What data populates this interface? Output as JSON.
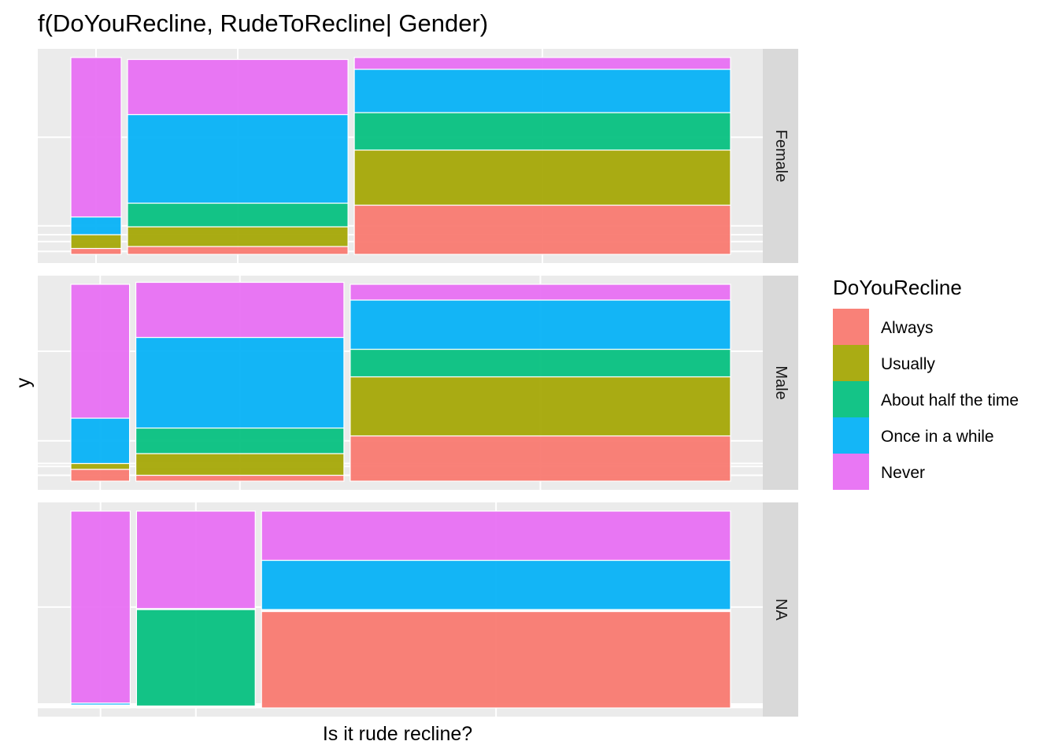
{
  "chart_data": {
    "type": "mosaic",
    "title": "f(DoYouRecline, RudeToRecline| Gender)",
    "xlabel": "Is it rude recline?",
    "ylabel": "y",
    "facet_labels": [
      "Female",
      "Male",
      "NA"
    ],
    "legend": {
      "title": "DoYouRecline",
      "placement": "right",
      "entries": [
        {
          "label": "Always",
          "color": "#F8766D"
        },
        {
          "label": "Usually",
          "color": "#A3A500"
        },
        {
          "label": "About half the time",
          "color": "#00BF7D"
        },
        {
          "label": "Once in a while",
          "color": "#00B0F6"
        },
        {
          "label": "Never",
          "color": "#E76BF3"
        }
      ]
    },
    "series_order": [
      "Always",
      "Usually",
      "About half the time",
      "Once in a while",
      "Never"
    ],
    "grid": true,
    "facets": [
      {
        "gender": "Female",
        "column_widths": [
          0.077,
          0.337,
          0.575
        ],
        "columns": [
          [
            0.03,
            0.07,
            0.0,
            0.09,
            0.81
          ],
          [
            0.04,
            0.1,
            0.12,
            0.45,
            0.28
          ],
          [
            0.25,
            0.28,
            0.19,
            0.22,
            0.06
          ]
        ]
      },
      {
        "gender": "Male",
        "column_widths": [
          0.09,
          0.319,
          0.583
        ],
        "columns": [
          [
            0.06,
            0.03,
            0.0,
            0.23,
            0.68
          ],
          [
            0.03,
            0.11,
            0.13,
            0.46,
            0.28
          ],
          [
            0.23,
            0.3,
            0.14,
            0.25,
            0.08
          ]
        ]
      },
      {
        "gender": "NA",
        "column_widths": [
          0.091,
          0.182,
          0.719
        ],
        "columns": [
          [
            0.005,
            0.005,
            0.005,
            0.01,
            0.975
          ],
          [
            0.005,
            0.005,
            0.49,
            0.005,
            0.495
          ],
          [
            0.49,
            0.005,
            0.005,
            0.25,
            0.25
          ]
        ]
      }
    ]
  }
}
